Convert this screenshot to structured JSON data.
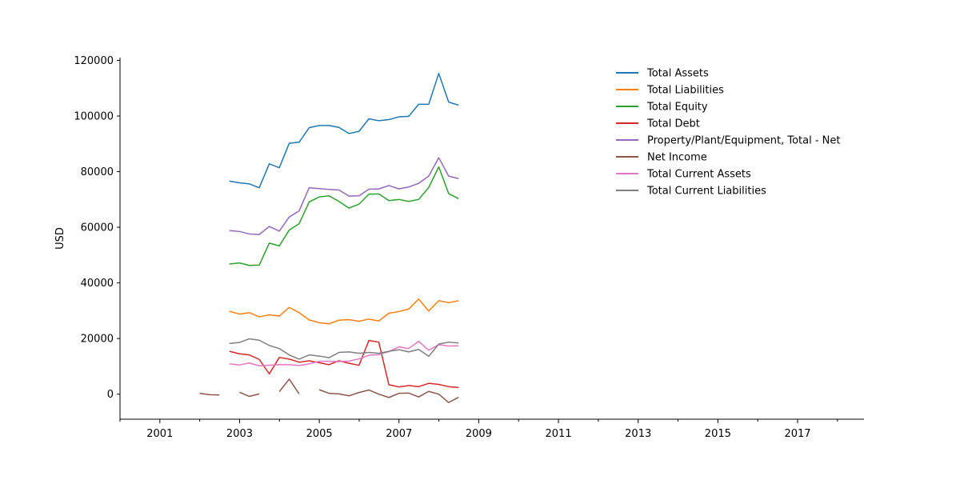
{
  "chart_data": {
    "type": "line",
    "title": "",
    "xlabel": "",
    "ylabel": "USD",
    "xlim": [
      "2000-01-01",
      "2018-09-01"
    ],
    "ylim": [
      -9000,
      121000
    ],
    "x_ticks": [
      "2001",
      "2003",
      "2005",
      "2007",
      "2009",
      "2011",
      "2013",
      "2015",
      "2017"
    ],
    "y_ticks": [
      0,
      20000,
      40000,
      60000,
      80000,
      100000,
      120000
    ],
    "grid": false,
    "legend_position": "upper right, outside plot area",
    "series": [
      {
        "name": "Total Assets",
        "color": "#1f77b4",
        "points": [
          [
            "2002-09-30",
            76600
          ],
          [
            "2002-12-31",
            76000
          ],
          [
            "2003-03-31",
            75600
          ],
          [
            "2003-06-30",
            74200
          ],
          [
            "2003-09-30",
            82800
          ],
          [
            "2003-12-31",
            81400
          ],
          [
            "2004-03-31",
            90200
          ],
          [
            "2004-06-30",
            90600
          ],
          [
            "2004-09-30",
            95800
          ],
          [
            "2004-12-31",
            96600
          ],
          [
            "2005-03-31",
            96600
          ],
          [
            "2005-06-30",
            95900
          ],
          [
            "2005-09-30",
            93700
          ],
          [
            "2005-12-31",
            94500
          ],
          [
            "2006-03-31",
            99000
          ],
          [
            "2006-06-30",
            98300
          ],
          [
            "2006-09-30",
            98700
          ],
          [
            "2006-12-31",
            99700
          ],
          [
            "2007-03-31",
            99900
          ],
          [
            "2007-06-30",
            104200
          ],
          [
            "2007-09-30",
            104200
          ],
          [
            "2007-12-31",
            115300
          ],
          [
            "2008-03-31",
            105000
          ],
          [
            "2008-06-30",
            103900
          ]
        ]
      },
      {
        "name": "Total Liabilities",
        "color": "#ff7f0e",
        "points": [
          [
            "2002-09-30",
            29800
          ],
          [
            "2002-12-31",
            28800
          ],
          [
            "2003-03-31",
            29300
          ],
          [
            "2003-06-30",
            27800
          ],
          [
            "2003-09-30",
            28500
          ],
          [
            "2003-12-31",
            28100
          ],
          [
            "2004-03-31",
            31200
          ],
          [
            "2004-06-30",
            29300
          ],
          [
            "2004-09-30",
            26700
          ],
          [
            "2004-12-31",
            25700
          ],
          [
            "2005-03-31",
            25300
          ],
          [
            "2005-06-30",
            26600
          ],
          [
            "2005-09-30",
            26800
          ],
          [
            "2005-12-31",
            26200
          ],
          [
            "2006-03-31",
            27000
          ],
          [
            "2006-06-30",
            26300
          ],
          [
            "2006-09-30",
            29100
          ],
          [
            "2006-12-31",
            29700
          ],
          [
            "2007-03-31",
            30600
          ],
          [
            "2007-06-30",
            34200
          ],
          [
            "2007-09-30",
            29900
          ],
          [
            "2007-12-31",
            33600
          ],
          [
            "2008-03-31",
            32900
          ],
          [
            "2008-06-30",
            33600
          ]
        ]
      },
      {
        "name": "Total Equity",
        "color": "#2ca02c",
        "points": [
          [
            "2002-09-30",
            46800
          ],
          [
            "2002-12-31",
            47200
          ],
          [
            "2003-03-31",
            46300
          ],
          [
            "2003-06-30",
            46400
          ],
          [
            "2003-09-30",
            54300
          ],
          [
            "2003-12-31",
            53300
          ],
          [
            "2004-03-31",
            59000
          ],
          [
            "2004-06-30",
            61300
          ],
          [
            "2004-09-30",
            69100
          ],
          [
            "2004-12-31",
            70900
          ],
          [
            "2005-03-31",
            71300
          ],
          [
            "2005-06-30",
            69300
          ],
          [
            "2005-09-30",
            66900
          ],
          [
            "2005-12-31",
            68300
          ],
          [
            "2006-03-31",
            71900
          ],
          [
            "2006-06-30",
            72000
          ],
          [
            "2006-09-30",
            69600
          ],
          [
            "2006-12-31",
            70000
          ],
          [
            "2007-03-31",
            69300
          ],
          [
            "2007-06-30",
            70000
          ],
          [
            "2007-09-30",
            74300
          ],
          [
            "2007-12-31",
            81700
          ],
          [
            "2008-03-31",
            72100
          ],
          [
            "2008-06-30",
            70300
          ]
        ]
      },
      {
        "name": "Total Debt",
        "color": "#d62728",
        "points": [
          [
            "2002-09-30",
            15400
          ],
          [
            "2002-12-31",
            14500
          ],
          [
            "2003-03-31",
            14100
          ],
          [
            "2003-06-30",
            12500
          ],
          [
            "2003-09-30",
            7300
          ],
          [
            "2003-12-31",
            13200
          ],
          [
            "2004-03-31",
            12600
          ],
          [
            "2004-06-30",
            11500
          ],
          [
            "2004-09-30",
            12000
          ],
          [
            "2004-12-31",
            11300
          ],
          [
            "2005-03-31",
            10600
          ],
          [
            "2005-06-30",
            12000
          ],
          [
            "2005-09-30",
            11100
          ],
          [
            "2005-12-31",
            10400
          ],
          [
            "2006-03-31",
            19300
          ],
          [
            "2006-06-30",
            18700
          ],
          [
            "2006-09-30",
            3400
          ],
          [
            "2006-12-31",
            2600
          ],
          [
            "2007-03-31",
            3100
          ],
          [
            "2007-06-30",
            2700
          ],
          [
            "2007-09-30",
            3900
          ],
          [
            "2007-12-31",
            3500
          ],
          [
            "2008-03-31",
            2700
          ],
          [
            "2008-06-30",
            2400
          ]
        ]
      },
      {
        "name": "Property/Plant/Equipment, Total - Net",
        "color": "#9467bd",
        "points": [
          [
            "2002-09-30",
            58800
          ],
          [
            "2002-12-31",
            58500
          ],
          [
            "2003-03-31",
            57600
          ],
          [
            "2003-06-30",
            57400
          ],
          [
            "2003-09-30",
            60300
          ],
          [
            "2003-12-31",
            58600
          ],
          [
            "2004-03-31",
            63700
          ],
          [
            "2004-06-30",
            65900
          ],
          [
            "2004-09-30",
            74200
          ],
          [
            "2004-12-31",
            73900
          ],
          [
            "2005-03-31",
            73600
          ],
          [
            "2005-06-30",
            73400
          ],
          [
            "2005-09-30",
            71200
          ],
          [
            "2005-12-31",
            71300
          ],
          [
            "2006-03-31",
            73700
          ],
          [
            "2006-06-30",
            73800
          ],
          [
            "2006-09-30",
            75000
          ],
          [
            "2006-12-31",
            73800
          ],
          [
            "2007-03-31",
            74500
          ],
          [
            "2007-06-30",
            75800
          ],
          [
            "2007-09-30",
            78400
          ],
          [
            "2007-12-31",
            85000
          ],
          [
            "2008-03-31",
            78400
          ],
          [
            "2008-06-30",
            77500
          ]
        ]
      },
      {
        "name": "Net Income",
        "color": "#8c564b",
        "points": [
          [
            "2001-12-31",
            300
          ],
          [
            "2002-03-31",
            -200
          ],
          [
            "2002-06-30",
            -300
          ],
          [
            "2002-09-30",
            null
          ],
          [
            "2002-12-31",
            700
          ],
          [
            "2003-03-31",
            -800
          ],
          [
            "2003-06-30",
            100
          ],
          [
            "2003-09-30",
            null
          ],
          [
            "2003-12-31",
            900
          ],
          [
            "2004-03-31",
            5400
          ],
          [
            "2004-06-30",
            100
          ],
          [
            "2004-09-30",
            null
          ],
          [
            "2004-12-31",
            1600
          ],
          [
            "2005-03-31",
            300
          ],
          [
            "2005-06-30",
            100
          ],
          [
            "2005-09-30",
            -600
          ],
          [
            "2005-12-31",
            600
          ],
          [
            "2006-03-31",
            1500
          ],
          [
            "2006-06-30",
            0
          ],
          [
            "2006-09-30",
            -1200
          ],
          [
            "2006-12-31",
            300
          ],
          [
            "2007-03-31",
            400
          ],
          [
            "2007-06-30",
            -1000
          ],
          [
            "2007-09-30",
            1000
          ],
          [
            "2007-12-31",
            0
          ],
          [
            "2008-03-31",
            -3000
          ],
          [
            "2008-06-30",
            -1100
          ]
        ]
      },
      {
        "name": "Total Current Assets",
        "color": "#e377c2",
        "points": [
          [
            "2002-09-30",
            10900
          ],
          [
            "2002-12-31",
            10500
          ],
          [
            "2003-03-31",
            11200
          ],
          [
            "2003-06-30",
            10200
          ],
          [
            "2003-09-30",
            10400
          ],
          [
            "2003-12-31",
            10600
          ],
          [
            "2004-03-31",
            10600
          ],
          [
            "2004-06-30",
            10300
          ],
          [
            "2004-09-30",
            10900
          ],
          [
            "2004-12-31",
            11800
          ],
          [
            "2005-03-31",
            11800
          ],
          [
            "2005-06-30",
            11700
          ],
          [
            "2005-09-30",
            11900
          ],
          [
            "2005-12-31",
            12700
          ],
          [
            "2006-03-31",
            14000
          ],
          [
            "2006-06-30",
            14200
          ],
          [
            "2006-09-30",
            15300
          ],
          [
            "2006-12-31",
            17000
          ],
          [
            "2007-03-31",
            16400
          ],
          [
            "2007-06-30",
            19000
          ],
          [
            "2007-09-30",
            15800
          ],
          [
            "2007-12-31",
            17800
          ],
          [
            "2008-03-31",
            17300
          ],
          [
            "2008-06-30",
            17400
          ]
        ]
      },
      {
        "name": "Total Current Liabilities",
        "color": "#7f7f7f",
        "points": [
          [
            "2002-09-30",
            18200
          ],
          [
            "2002-12-31",
            18600
          ],
          [
            "2003-03-31",
            19900
          ],
          [
            "2003-06-30",
            19400
          ],
          [
            "2003-09-30",
            17500
          ],
          [
            "2003-12-31",
            16400
          ],
          [
            "2004-03-31",
            14100
          ],
          [
            "2004-06-30",
            12600
          ],
          [
            "2004-09-30",
            14100
          ],
          [
            "2004-12-31",
            13700
          ],
          [
            "2005-03-31",
            13100
          ],
          [
            "2005-06-30",
            15000
          ],
          [
            "2005-09-30",
            15200
          ],
          [
            "2005-12-31",
            14700
          ],
          [
            "2006-03-31",
            15000
          ],
          [
            "2006-06-30",
            14700
          ],
          [
            "2006-09-30",
            15400
          ],
          [
            "2006-12-31",
            16000
          ],
          [
            "2007-03-31",
            15200
          ],
          [
            "2007-06-30",
            16100
          ],
          [
            "2007-09-30",
            13600
          ],
          [
            "2007-12-31",
            18000
          ],
          [
            "2008-03-31",
            18700
          ],
          [
            "2008-06-30",
            18400
          ]
        ]
      }
    ]
  }
}
